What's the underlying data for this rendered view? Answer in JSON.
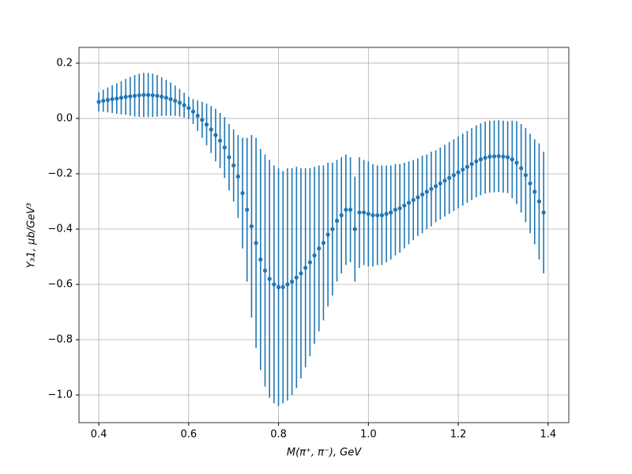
{
  "chart_data": {
    "type": "errorbar",
    "xlabel": "M(π⁺, π⁻), GeV",
    "ylabel": "Y₃1, μb/GeV³",
    "color": "#1f77b4",
    "grid": true,
    "xlim": [
      0.356,
      1.446
    ],
    "ylim": [
      -1.1,
      0.257
    ],
    "xticks": [
      0.4,
      0.6,
      0.8,
      {
        "value": 1.0,
        "label": "1.0"
      },
      1.2,
      1.4
    ],
    "yticks": [
      {
        "value": -1.0,
        "label": "−1.0"
      },
      {
        "value": -0.8,
        "label": "−0.8"
      },
      {
        "value": -0.6,
        "label": "−0.6"
      },
      {
        "value": -0.4,
        "label": "−0.4"
      },
      {
        "value": -0.2,
        "label": "−0.2"
      },
      {
        "value": 0.0,
        "label": "0.0"
      },
      0.2
    ],
    "x": [
      0.4,
      0.41,
      0.42,
      0.43,
      0.44,
      0.45,
      0.46,
      0.47,
      0.48,
      0.49,
      0.5,
      0.51,
      0.52,
      0.53,
      0.54,
      0.55,
      0.56,
      0.57,
      0.58,
      0.59,
      0.6,
      0.61,
      0.62,
      0.63,
      0.64,
      0.65,
      0.66,
      0.67,
      0.68,
      0.69,
      0.7,
      0.71,
      0.72,
      0.73,
      0.74,
      0.75,
      0.76,
      0.77,
      0.78,
      0.79,
      0.8,
      0.81,
      0.82,
      0.83,
      0.84,
      0.85,
      0.86,
      0.87,
      0.88,
      0.89,
      0.9,
      0.91,
      0.92,
      0.93,
      0.94,
      0.95,
      0.96,
      0.97,
      0.98,
      0.99,
      1.0,
      1.01,
      1.02,
      1.03,
      1.04,
      1.05,
      1.06,
      1.07,
      1.08,
      1.09,
      1.1,
      1.11,
      1.12,
      1.13,
      1.14,
      1.15,
      1.16,
      1.17,
      1.18,
      1.19,
      1.2,
      1.21,
      1.22,
      1.23,
      1.24,
      1.25,
      1.26,
      1.27,
      1.28,
      1.29,
      1.3,
      1.31,
      1.32,
      1.33,
      1.34,
      1.35,
      1.36,
      1.37,
      1.38,
      1.39
    ],
    "y": [
      0.06,
      0.064,
      0.067,
      0.07,
      0.072,
      0.075,
      0.078,
      0.08,
      0.082,
      0.084,
      0.085,
      0.085,
      0.084,
      0.082,
      0.079,
      0.075,
      0.07,
      0.064,
      0.057,
      0.048,
      0.038,
      0.025,
      0.01,
      -0.005,
      -0.022,
      -0.04,
      -0.06,
      -0.08,
      -0.105,
      -0.14,
      -0.17,
      -0.21,
      -0.27,
      -0.33,
      -0.39,
      -0.45,
      -0.51,
      -0.55,
      -0.58,
      -0.6,
      -0.61,
      -0.61,
      -0.6,
      -0.59,
      -0.575,
      -0.56,
      -0.54,
      -0.52,
      -0.495,
      -0.47,
      -0.45,
      -0.42,
      -0.4,
      -0.37,
      -0.35,
      -0.33,
      -0.33,
      -0.4,
      -0.34,
      -0.34,
      -0.345,
      -0.35,
      -0.35,
      -0.35,
      -0.345,
      -0.34,
      -0.33,
      -0.325,
      -0.315,
      -0.305,
      -0.295,
      -0.285,
      -0.275,
      -0.265,
      -0.255,
      -0.245,
      -0.235,
      -0.225,
      -0.215,
      -0.205,
      -0.195,
      -0.185,
      -0.175,
      -0.165,
      -0.155,
      -0.148,
      -0.142,
      -0.138,
      -0.137,
      -0.136,
      -0.138,
      -0.14,
      -0.148,
      -0.16,
      -0.18,
      -0.205,
      -0.235,
      -0.265,
      -0.3,
      -0.34
    ],
    "yerr": [
      0.035,
      0.04,
      0.045,
      0.05,
      0.055,
      0.06,
      0.065,
      0.07,
      0.075,
      0.078,
      0.08,
      0.08,
      0.078,
      0.075,
      0.07,
      0.065,
      0.06,
      0.055,
      0.05,
      0.045,
      0.04,
      0.045,
      0.055,
      0.065,
      0.075,
      0.085,
      0.095,
      0.1,
      0.11,
      0.12,
      0.13,
      0.15,
      0.2,
      0.26,
      0.33,
      0.38,
      0.4,
      0.42,
      0.43,
      0.43,
      0.43,
      0.42,
      0.42,
      0.41,
      0.4,
      0.38,
      0.36,
      0.34,
      0.32,
      0.3,
      0.28,
      0.26,
      0.24,
      0.22,
      0.21,
      0.2,
      0.19,
      0.19,
      0.2,
      0.19,
      0.19,
      0.185,
      0.18,
      0.18,
      0.175,
      0.17,
      0.165,
      0.16,
      0.155,
      0.15,
      0.145,
      0.14,
      0.14,
      0.135,
      0.135,
      0.13,
      0.13,
      0.13,
      0.13,
      0.13,
      0.13,
      0.13,
      0.13,
      0.13,
      0.13,
      0.13,
      0.13,
      0.13,
      0.13,
      0.13,
      0.13,
      0.13,
      0.14,
      0.15,
      0.16,
      0.17,
      0.18,
      0.19,
      0.21,
      0.22
    ]
  }
}
